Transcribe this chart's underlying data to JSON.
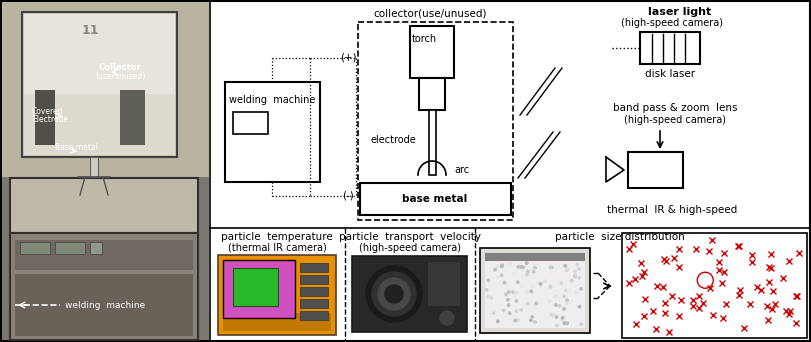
{
  "fig_width": 8.11,
  "fig_height": 3.42,
  "dpi": 100,
  "bg_color": "#ffffff",
  "schematic": {
    "collector_label": "collector(use/unused)",
    "laser_light": "laser light",
    "laser_light_sub": "(high-speed camera)",
    "disk_laser": "disk laser",
    "band_pass": "band pass & zoom  lens",
    "band_pass_sub": "(high-speed camera)",
    "thermal": "thermal  IR & high-speed",
    "welding_machine": "welding  machine",
    "torch": "torch",
    "electrode": "electrode",
    "arc": "arc",
    "base_metal": "base metal",
    "plus": "(+)",
    "minus": "(-)"
  },
  "bottom": {
    "temp_label": "particle  temperature",
    "temp_sub": "(thermal IR camera)",
    "vel_label": "particle  transport  velocity",
    "vel_sub": "(high-speed camera)",
    "size_label": "particle  size distribution"
  }
}
